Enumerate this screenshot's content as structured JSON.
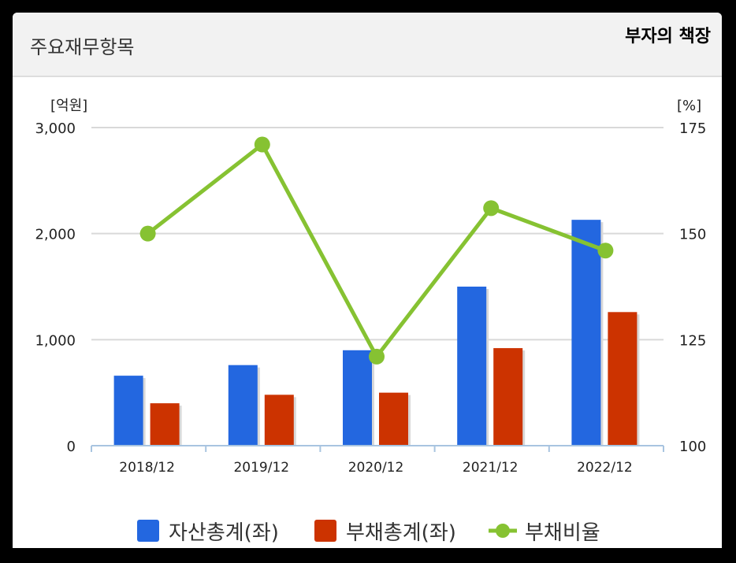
{
  "header": {
    "title": "주요재무항목",
    "brand": "부자의 책장"
  },
  "colors": {
    "assets": "#2367e0",
    "liabilities": "#cc3300",
    "ratio": "#86c232"
  },
  "chart_data": {
    "type": "bar",
    "categories": [
      "2018/12",
      "2019/12",
      "2020/12",
      "2021/12",
      "2022/12"
    ],
    "y_left_unit": "[억원]",
    "y_right_unit": "[%]",
    "y_left_range": [
      0,
      3000
    ],
    "y_right_range": [
      100,
      175
    ],
    "y_left_ticks": [
      "0",
      "1,000",
      "2,000",
      "3,000"
    ],
    "y_right_ticks": [
      "100",
      "125",
      "150",
      "175"
    ],
    "grid": true,
    "legend_position": "bottom",
    "series": [
      {
        "name": "자산총계(좌)",
        "type": "bar",
        "axis": "left",
        "values": [
          660,
          760,
          900,
          1500,
          2130
        ]
      },
      {
        "name": "부채총계(좌)",
        "type": "bar",
        "axis": "left",
        "values": [
          400,
          480,
          500,
          920,
          1260
        ]
      },
      {
        "name": "부채비율",
        "type": "line",
        "axis": "right",
        "values": [
          150,
          171,
          121,
          156,
          146
        ]
      }
    ]
  }
}
